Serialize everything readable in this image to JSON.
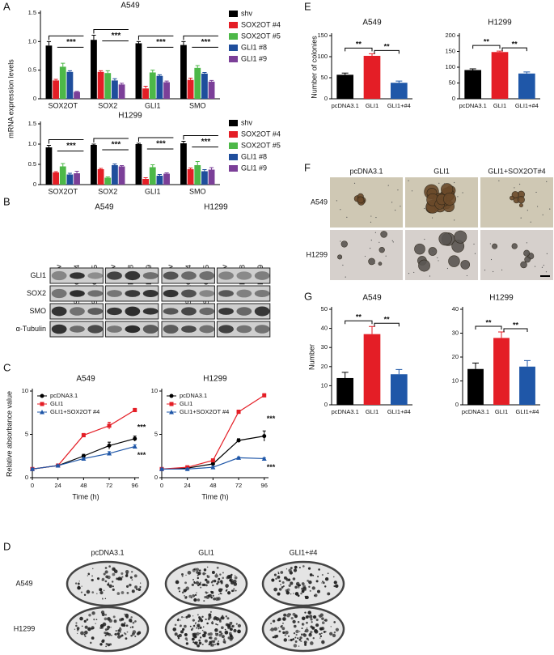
{
  "panels": {
    "a": "A",
    "b": "B",
    "c": "C",
    "d": "D",
    "e": "E",
    "f": "F",
    "g": "G"
  },
  "blot": {
    "cell_lines": [
      "A549",
      "H1299"
    ],
    "lanes": [
      "shv",
      "SOX2OT #4",
      "SOX2OT #5",
      "shv",
      "GLI1 #8",
      "GLI1 #9"
    ],
    "proteins": [
      "GLI1",
      "SOX2",
      "SMO",
      "α-Tubulin"
    ]
  },
  "colony_plates": {
    "columns": [
      "pcDNA3.1",
      "GLI1",
      "GLI1+#4"
    ],
    "rows": [
      "A549",
      "H1299"
    ]
  },
  "spheres": {
    "columns": [
      "pcDNA3.1",
      "GLI1",
      "GLI1+SOX2OT#4"
    ],
    "rows": [
      "A549",
      "H1299"
    ]
  },
  "chart_data": [
    {
      "type": "grouped_bar",
      "title": "A549",
      "ylabel": "mRNA expression levels",
      "categories": [
        "SOX2OT",
        "SOX2",
        "GLI1",
        "SMO"
      ],
      "series": [
        {
          "name": "shv",
          "color": "#000000",
          "values": [
            0.93,
            1.03,
            0.97,
            0.94
          ],
          "errors": [
            0.07,
            0.08,
            0.03,
            0.06
          ]
        },
        {
          "name": "SOX2OT #4",
          "color": "#e41e26",
          "values": [
            0.32,
            0.47,
            0.18,
            0.33
          ],
          "errors": [
            0.02,
            0.02,
            0.04,
            0.03
          ]
        },
        {
          "name": "SOX2OT #5",
          "color": "#4db848",
          "values": [
            0.56,
            0.45,
            0.46,
            0.54
          ],
          "errors": [
            0.06,
            0.04,
            0.04,
            0.04
          ]
        },
        {
          "name": "GLI1 #8",
          "color": "#1f4e9c",
          "values": [
            0.47,
            0.32,
            0.4,
            0.44
          ],
          "errors": [
            0.02,
            0.03,
            0.02,
            0.02
          ]
        },
        {
          "name": "GLI1 #9",
          "color": "#7b3f98",
          "values": [
            0.12,
            0.25,
            0.29,
            0.3
          ],
          "errors": [
            0.01,
            0.02,
            0.02,
            0.02
          ]
        }
      ],
      "ylim": [
        0,
        1.5
      ],
      "yticks": [
        0,
        0.5,
        {
          "value": 1,
          "label": "1.0"
        },
        1.5
      ],
      "significance": [
        "***",
        "***",
        "***",
        "***"
      ],
      "legend": "right"
    },
    {
      "type": "grouped_bar",
      "title": "H1299",
      "categories": [
        "SOX2OT",
        "SOX2",
        "GLI1",
        "SMO"
      ],
      "series": [
        {
          "name": "shv",
          "color": "#000000",
          "values": [
            0.92,
            0.98,
            1.0,
            1.02
          ],
          "errors": [
            0.05,
            0.02,
            0.02,
            0.05
          ]
        },
        {
          "name": "SOX2OT #4",
          "color": "#e41e26",
          "values": [
            0.3,
            0.38,
            0.14,
            0.38
          ],
          "errors": [
            0.02,
            0.02,
            0.03,
            0.03
          ]
        },
        {
          "name": "SOX2OT #5",
          "color": "#4db848",
          "values": [
            0.45,
            0.17,
            0.43,
            0.48
          ],
          "errors": [
            0.07,
            0.02,
            0.06,
            0.09
          ]
        },
        {
          "name": "GLI1 #8",
          "color": "#1f4e9c",
          "values": [
            0.25,
            0.48,
            0.22,
            0.33
          ],
          "errors": [
            0.03,
            0.03,
            0.03,
            0.04
          ]
        },
        {
          "name": "GLI1 #9",
          "color": "#7b3f98",
          "values": [
            0.28,
            0.45,
            0.27,
            0.37
          ],
          "errors": [
            0.05,
            0.02,
            0.02,
            0.05
          ]
        }
      ],
      "ylim": [
        0,
        1.5
      ],
      "yticks": [
        0,
        0.5,
        {
          "value": 1,
          "label": "1.0"
        },
        1.5
      ],
      "significance": [
        "***",
        "***",
        "***",
        "***"
      ],
      "legend": "right"
    },
    {
      "type": "line",
      "title": "A549",
      "ylabel": "Relative absorbance value",
      "xlabel": "Time (h)",
      "x": [
        0,
        24,
        48,
        72,
        96
      ],
      "xlim": [
        0,
        100
      ],
      "xticks": [
        0,
        24,
        48,
        72,
        96
      ],
      "ylim": [
        0,
        10
      ],
      "yticks": [
        0,
        5,
        10
      ],
      "legend": "upper left",
      "series": [
        {
          "name": "pcDNA3.1",
          "color": "#000000",
          "marker": "circle",
          "values": [
            1.0,
            1.4,
            2.5,
            3.7,
            4.5
          ],
          "errors": [
            0.1,
            0.1,
            0.2,
            0.4,
            0.3
          ]
        },
        {
          "name": "GLI1",
          "color": "#e41e26",
          "marker": "square",
          "values": [
            1.0,
            1.4,
            4.9,
            6.0,
            7.8
          ],
          "errors": [
            0.1,
            0.1,
            0.2,
            0.4,
            0.2
          ]
        },
        {
          "name": "GLI1+SOX2OT #4",
          "color": "#1f57a8",
          "marker": "triangle",
          "values": [
            1.0,
            1.4,
            2.2,
            2.8,
            3.6
          ],
          "errors": [
            0.1,
            0.1,
            0.1,
            0.2,
            0.2
          ]
        }
      ],
      "significance": [
        "***",
        "***"
      ]
    },
    {
      "type": "line",
      "title": "H1299",
      "xlabel": "Time (h)",
      "x": [
        0,
        24,
        48,
        72,
        96
      ],
      "xlim": [
        0,
        100
      ],
      "xticks": [
        0,
        24,
        48,
        72,
        96
      ],
      "ylim": [
        0,
        10
      ],
      "yticks": [
        0,
        5,
        10
      ],
      "legend": "upper left",
      "series": [
        {
          "name": "pcDNA3.1",
          "color": "#000000",
          "marker": "circle",
          "values": [
            1.0,
            1.1,
            1.6,
            4.3,
            4.8
          ],
          "errors": [
            0.1,
            0.1,
            0.1,
            0.2,
            0.6
          ]
        },
        {
          "name": "GLI1",
          "color": "#e41e26",
          "marker": "square",
          "values": [
            1.0,
            1.2,
            2.0,
            7.6,
            9.5
          ],
          "errors": [
            0.1,
            0.1,
            0.1,
            0.2,
            0.2
          ]
        },
        {
          "name": "GLI1+SOX2OT #4",
          "color": "#1f57a8",
          "marker": "triangle",
          "values": [
            1.0,
            1.0,
            1.2,
            2.3,
            2.2
          ],
          "errors": [
            0.1,
            0.1,
            0.1,
            0.1,
            0.1
          ]
        }
      ],
      "significance": [
        "***",
        "***"
      ]
    },
    {
      "type": "bar",
      "title": "A549",
      "ylabel": "Number of colonies",
      "categories": [
        "pcDNA3.1",
        "GLI1",
        "GLI1+#4"
      ],
      "values": [
        57,
        102,
        38
      ],
      "errors": [
        4,
        5,
        4
      ],
      "colors": [
        "#000000",
        "#e41e26",
        "#1f57a8"
      ],
      "ylim": [
        0,
        150
      ],
      "yticks": [
        0,
        50,
        100,
        150
      ],
      "significance": [
        "**",
        "**"
      ]
    },
    {
      "type": "bar",
      "title": "H1299",
      "categories": [
        "pcDNA3.1",
        "GLI1",
        "GLI1+#4"
      ],
      "values": [
        91,
        148,
        80
      ],
      "errors": [
        4,
        3,
        5
      ],
      "colors": [
        "#000000",
        "#e41e26",
        "#1f57a8"
      ],
      "ylim": [
        0,
        200
      ],
      "yticks": [
        0,
        50,
        100,
        150,
        200
      ],
      "significance": [
        "**",
        "**"
      ]
    },
    {
      "type": "bar",
      "title": "A549",
      "ylabel": "Number",
      "categories": [
        "pcDNA3.1",
        "GLI1",
        "GLI1+#4"
      ],
      "values": [
        14,
        37,
        16
      ],
      "errors": [
        3,
        4,
        2.5
      ],
      "colors": [
        "#000000",
        "#e41e26",
        "#1f57a8"
      ],
      "ylim": [
        0,
        50
      ],
      "yticks": [
        0,
        10,
        20,
        30,
        40,
        50
      ],
      "significance": [
        "**",
        "**"
      ]
    },
    {
      "type": "bar",
      "title": "H1299",
      "categories": [
        "pcDNA3.1",
        "GLI1",
        "GLI1+#4"
      ],
      "values": [
        15,
        28,
        16
      ],
      "errors": [
        2.5,
        2.5,
        2.5
      ],
      "colors": [
        "#000000",
        "#e41e26",
        "#1f57a8"
      ],
      "ylim": [
        0,
        40
      ],
      "yticks": [
        0,
        10,
        20,
        30,
        40
      ],
      "significance": [
        "**",
        "**"
      ]
    }
  ]
}
